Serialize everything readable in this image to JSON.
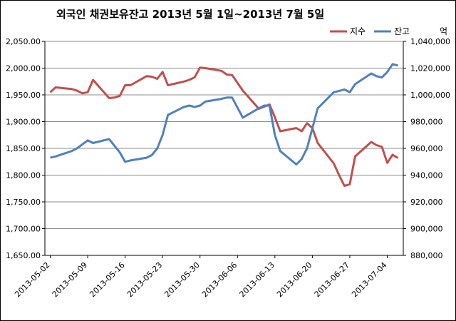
{
  "title": "외국인 채권보유잔고  2013년 5월 1일~2013년 7월 5일",
  "unit_label": "억",
  "colors": {
    "index": "#c0504d",
    "balance": "#4f81bd",
    "grid": "#8c8c8c"
  },
  "chart_data": {
    "type": "line",
    "title": "외국인 채권보유잔고  2013년 5월 1일~2013년 7월 5일",
    "x_ticks": [
      "2013-05-02",
      "2013-05-09",
      "2013-05-16",
      "2013-05-23",
      "2013-05-30",
      "2013-06-06",
      "2013-06-13",
      "2013-06-20",
      "2013-06-27",
      "2013-07-04"
    ],
    "y_left": {
      "ticks": [
        "1,650.00",
        "1,700.00",
        "1,750.00",
        "1,800.00",
        "1,850.00",
        "1,900.00",
        "1,950.00",
        "2,000.00",
        "2,050.00"
      ],
      "range": [
        1650,
        2050
      ]
    },
    "y_right": {
      "ticks": [
        "880,000",
        "900,000",
        "920,000",
        "940,000",
        "960,000",
        "980,000",
        "1,000,000",
        "1,020,000",
        "1,040,000"
      ],
      "range": [
        880000,
        1040000
      ]
    },
    "legend_position": "top-right",
    "series": [
      {
        "name": "지수",
        "axis": "left",
        "points": [
          [
            "2013-05-02",
            1955
          ],
          [
            "2013-05-03",
            1964
          ],
          [
            "2013-05-06",
            1961
          ],
          [
            "2013-05-07",
            1958
          ],
          [
            "2013-05-08",
            1953
          ],
          [
            "2013-05-09",
            1955
          ],
          [
            "2013-05-10",
            1978
          ],
          [
            "2013-05-13",
            1944
          ],
          [
            "2013-05-14",
            1945
          ],
          [
            "2013-05-15",
            1948
          ],
          [
            "2013-05-16",
            1968
          ],
          [
            "2013-05-17",
            1968
          ],
          [
            "2013-05-20",
            1985
          ],
          [
            "2013-05-21",
            1984
          ],
          [
            "2013-05-22",
            1980
          ],
          [
            "2013-05-23",
            1993
          ],
          [
            "2013-05-24",
            1968
          ],
          [
            "2013-05-27",
            1975
          ],
          [
            "2013-05-28",
            1978
          ],
          [
            "2013-05-29",
            1983
          ],
          [
            "2013-05-30",
            2001
          ],
          [
            "2013-05-31",
            2000
          ],
          [
            "2013-06-03",
            1995
          ],
          [
            "2013-06-04",
            1988
          ],
          [
            "2013-06-05",
            1987
          ],
          [
            "2013-06-07",
            1958
          ],
          [
            "2013-06-10",
            1924
          ],
          [
            "2013-06-11",
            1928
          ],
          [
            "2013-06-12",
            1932
          ],
          [
            "2013-06-13",
            1908
          ],
          [
            "2013-06-14",
            1882
          ],
          [
            "2013-06-17",
            1888
          ],
          [
            "2013-06-18",
            1882
          ],
          [
            "2013-06-19",
            1897
          ],
          [
            "2013-06-20",
            1888
          ],
          [
            "2013-06-21",
            1860
          ],
          [
            "2013-06-24",
            1822
          ],
          [
            "2013-06-25",
            1800
          ],
          [
            "2013-06-26",
            1780
          ],
          [
            "2013-06-27",
            1783
          ],
          [
            "2013-06-28",
            1835
          ],
          [
            "2013-07-01",
            1862
          ],
          [
            "2013-07-02",
            1856
          ],
          [
            "2013-07-03",
            1853
          ],
          [
            "2013-07-04",
            1823
          ],
          [
            "2013-07-05",
            1838
          ],
          [
            "2013-07-06",
            1832
          ]
        ]
      },
      {
        "name": "잔고",
        "axis": "right",
        "points": [
          [
            "2013-05-02",
            953000
          ],
          [
            "2013-05-03",
            954000
          ],
          [
            "2013-05-06",
            958000
          ],
          [
            "2013-05-07",
            960000
          ],
          [
            "2013-05-08",
            963000
          ],
          [
            "2013-05-09",
            966000
          ],
          [
            "2013-05-10",
            964000
          ],
          [
            "2013-05-13",
            967000
          ],
          [
            "2013-05-14",
            962000
          ],
          [
            "2013-05-15",
            957000
          ],
          [
            "2013-05-16",
            950000
          ],
          [
            "2013-05-17",
            951000
          ],
          [
            "2013-05-20",
            953000
          ],
          [
            "2013-05-21",
            955000
          ],
          [
            "2013-05-22",
            960000
          ],
          [
            "2013-05-23",
            970000
          ],
          [
            "2013-05-24",
            985000
          ],
          [
            "2013-05-27",
            991000
          ],
          [
            "2013-05-28",
            992000
          ],
          [
            "2013-05-29",
            991000
          ],
          [
            "2013-05-30",
            992000
          ],
          [
            "2013-05-31",
            995000
          ],
          [
            "2013-06-03",
            997000
          ],
          [
            "2013-06-04",
            998000
          ],
          [
            "2013-06-05",
            998000
          ],
          [
            "2013-06-07",
            983000
          ],
          [
            "2013-06-10",
            990000
          ],
          [
            "2013-06-11",
            992000
          ],
          [
            "2013-06-12",
            992000
          ],
          [
            "2013-06-13",
            970000
          ],
          [
            "2013-06-14",
            958000
          ],
          [
            "2013-06-17",
            948000
          ],
          [
            "2013-06-18",
            952000
          ],
          [
            "2013-06-19",
            960000
          ],
          [
            "2013-06-20",
            975000
          ],
          [
            "2013-06-21",
            990000
          ],
          [
            "2013-06-24",
            1002000
          ],
          [
            "2013-06-25",
            1003000
          ],
          [
            "2013-06-26",
            1004000
          ],
          [
            "2013-06-27",
            1002000
          ],
          [
            "2013-06-28",
            1008000
          ],
          [
            "2013-07-01",
            1016000
          ],
          [
            "2013-07-02",
            1014000
          ],
          [
            "2013-07-03",
            1013000
          ],
          [
            "2013-07-04",
            1017000
          ],
          [
            "2013-07-05",
            1023000
          ],
          [
            "2013-07-06",
            1022000
          ]
        ]
      }
    ]
  }
}
